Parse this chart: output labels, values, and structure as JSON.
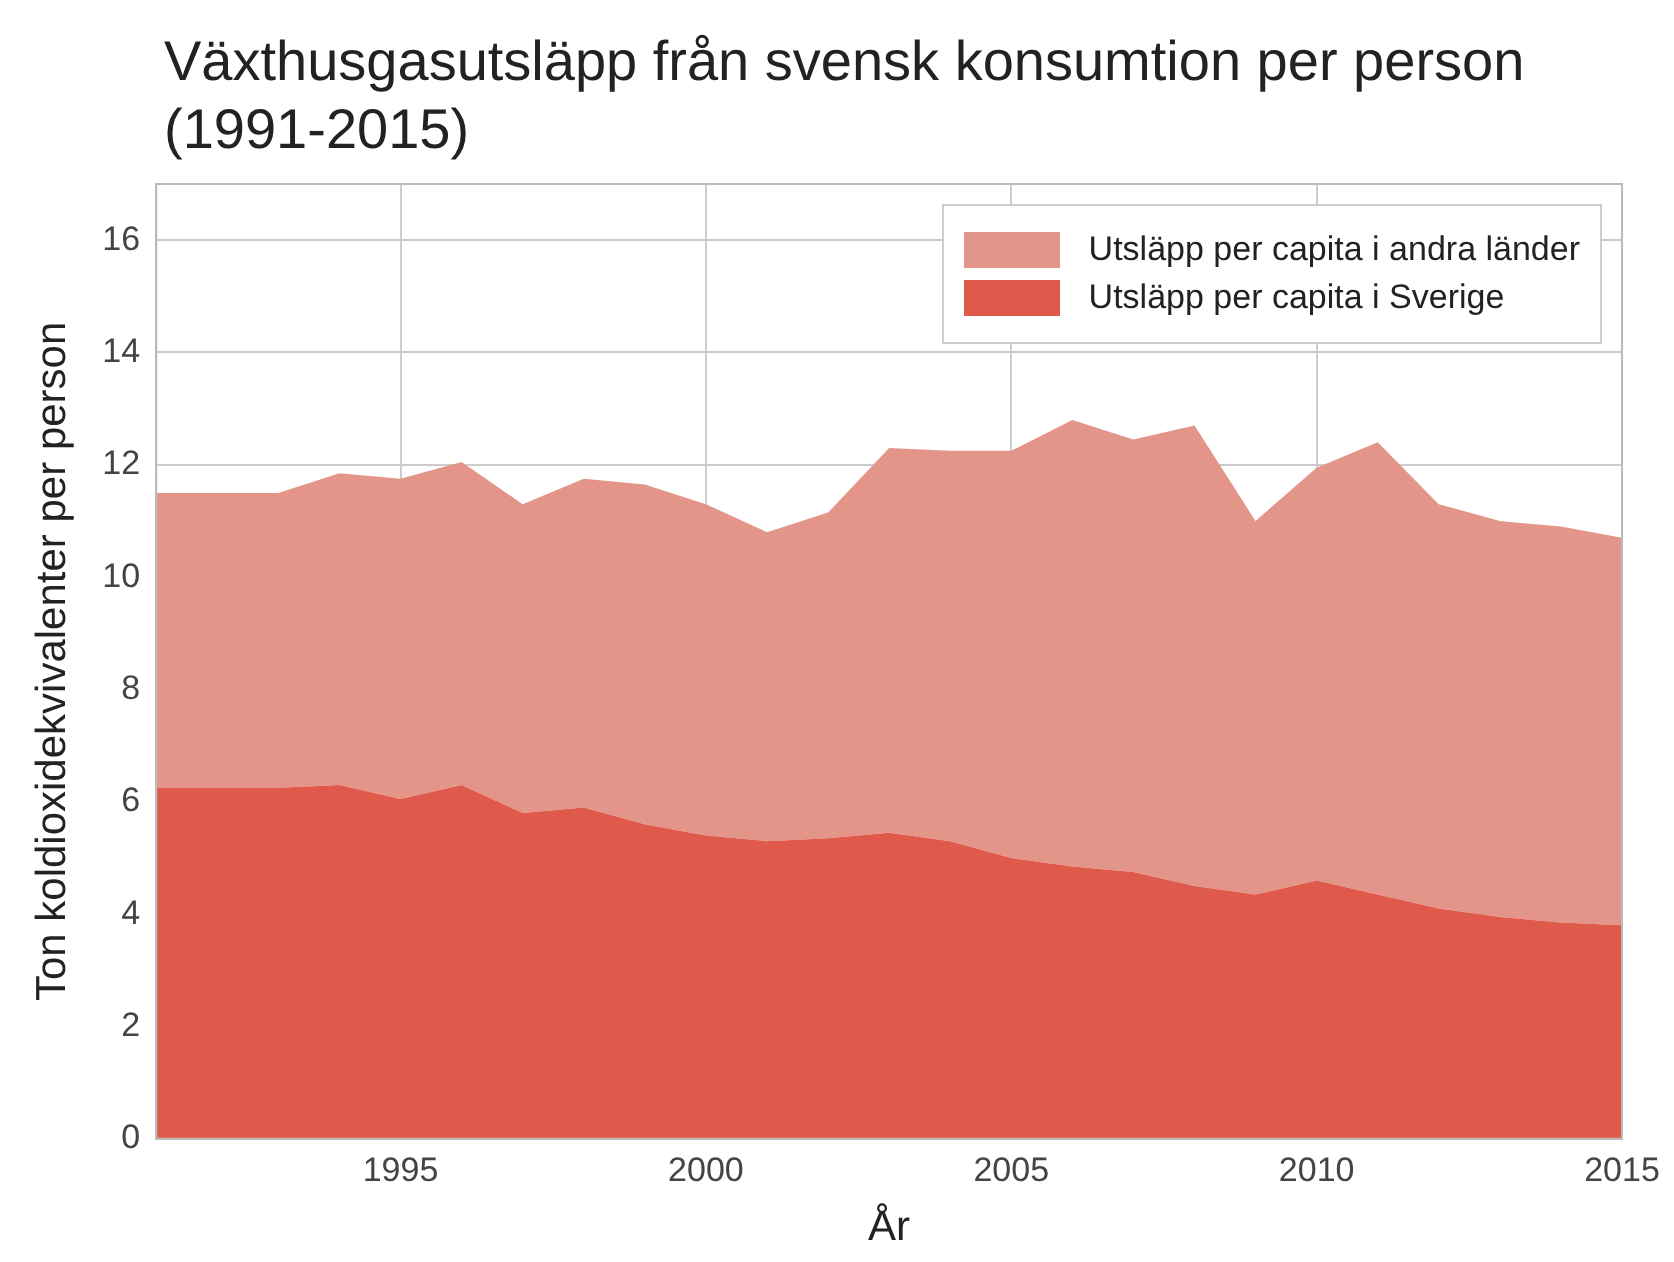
{
  "chart_data": {
    "type": "area",
    "title": "Växthusgasutsläpp från svensk konsumtion per person (1991-2015)",
    "xlabel": "År",
    "ylabel": "Ton koldioxidekvivalenter per person",
    "x": [
      1991,
      1992,
      1993,
      1994,
      1995,
      1996,
      1997,
      1998,
      1999,
      2000,
      2001,
      2002,
      2003,
      2004,
      2005,
      2006,
      2007,
      2008,
      2009,
      2010,
      2011,
      2012,
      2013,
      2014,
      2015
    ],
    "stacked": true,
    "series": [
      {
        "name": "Utsläpp per capita i Sverige",
        "color": "#df5a4a",
        "values": [
          6.25,
          6.25,
          6.25,
          6.3,
          6.05,
          6.3,
          5.8,
          5.9,
          5.6,
          5.4,
          5.3,
          5.35,
          5.45,
          5.3,
          5.0,
          4.85,
          4.75,
          4.5,
          4.35,
          4.6,
          4.35,
          4.1,
          3.95,
          3.85,
          3.8
        ]
      },
      {
        "name": "Utsläpp per capita i andra länder",
        "color": "#e4958a",
        "values": [
          5.25,
          5.25,
          5.25,
          5.55,
          5.7,
          5.75,
          5.5,
          5.85,
          6.05,
          5.9,
          5.5,
          5.8,
          6.85,
          6.95,
          7.25,
          7.95,
          7.7,
          8.2,
          6.65,
          7.35,
          8.05,
          7.2,
          7.05,
          7.05,
          6.9
        ]
      }
    ],
    "xlim": [
      1991,
      2015
    ],
    "xticks": [
      1995,
      2000,
      2005,
      2010,
      2015
    ],
    "ylim": [
      0,
      17
    ],
    "yticks": [
      0,
      2,
      4,
      6,
      8,
      10,
      12,
      14,
      16
    ],
    "grid": true,
    "legend": "top right"
  }
}
